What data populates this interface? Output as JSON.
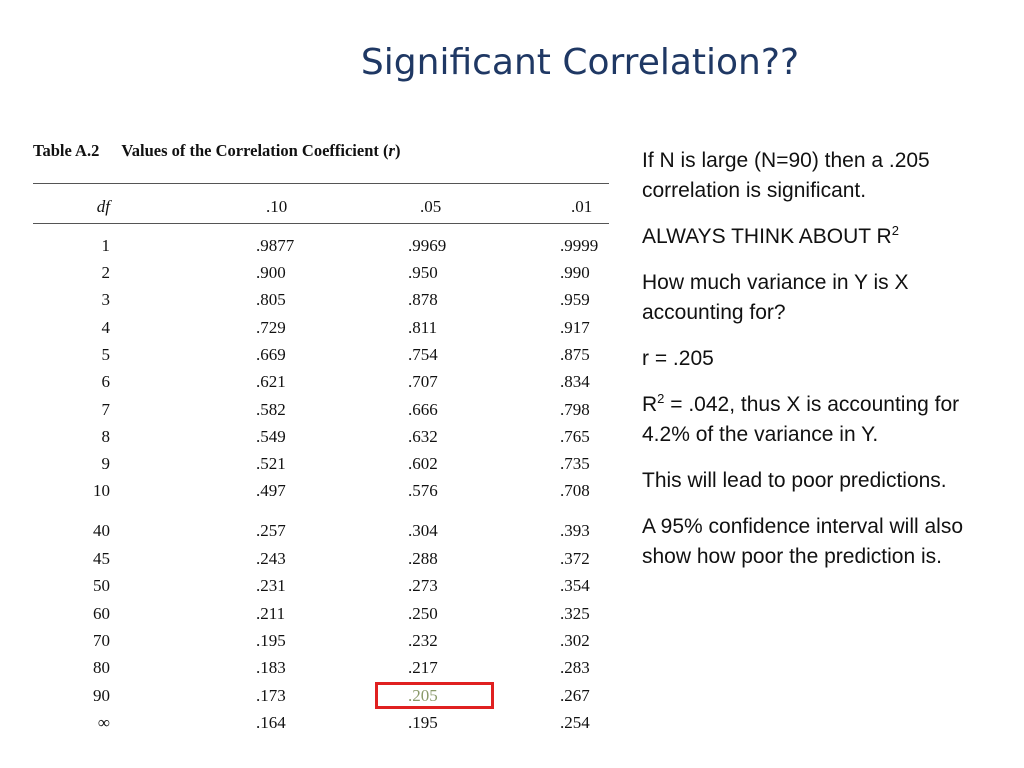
{
  "slide": {
    "title": "Significant Correlation??"
  },
  "table": {
    "caption_label": "Table A.2",
    "caption_text": "Values of the Correlation Coefficient (",
    "caption_var": "r",
    "caption_close": ")",
    "headers": [
      "df",
      ".10",
      ".05",
      ".01"
    ],
    "rows": [
      [
        "1",
        ".9877",
        ".9969",
        ".9999"
      ],
      [
        "2",
        ".900",
        ".950",
        ".990"
      ],
      [
        "3",
        ".805",
        ".878",
        ".959"
      ],
      [
        "4",
        ".729",
        ".811",
        ".917"
      ],
      [
        "5",
        ".669",
        ".754",
        ".875"
      ],
      [
        "6",
        ".621",
        ".707",
        ".834"
      ],
      [
        "7",
        ".582",
        ".666",
        ".798"
      ],
      [
        "8",
        ".549",
        ".632",
        ".765"
      ],
      [
        "9",
        ".521",
        ".602",
        ".735"
      ],
      [
        "10",
        ".497",
        ".576",
        ".708"
      ],
      [
        "40",
        ".257",
        ".304",
        ".393"
      ],
      [
        "45",
        ".243",
        ".288",
        ".372"
      ],
      [
        "50",
        ".231",
        ".273",
        ".354"
      ],
      [
        "60",
        ".211",
        ".250",
        ".325"
      ],
      [
        "70",
        ".195",
        ".232",
        ".302"
      ],
      [
        "80",
        ".183",
        ".217",
        ".283"
      ],
      [
        "90",
        ".173",
        ".205",
        ".267"
      ],
      [
        "∞",
        ".164",
        ".195",
        ".254"
      ]
    ],
    "highlight_color": "#e02020"
  },
  "notes": {
    "p1": "If N is large (N=90) then a .205 correlation is significant.",
    "p2_text": "ALWAYS THINK ABOUT R",
    "p2_sup": "2",
    "p3": "How much variance in Y is X accounting for?",
    "p4": "r = .205",
    "p5_pre": "R",
    "p5_sup": "2",
    "p5_text": " = .042, thus X is accounting for 4.2% of the variance in Y.",
    "p6": "This will lead to poor predictions.",
    "p7": "A 95% confidence interval will also show how poor the prediction is."
  },
  "colors": {
    "title": "#1f3864",
    "highlight": "#e02020"
  }
}
